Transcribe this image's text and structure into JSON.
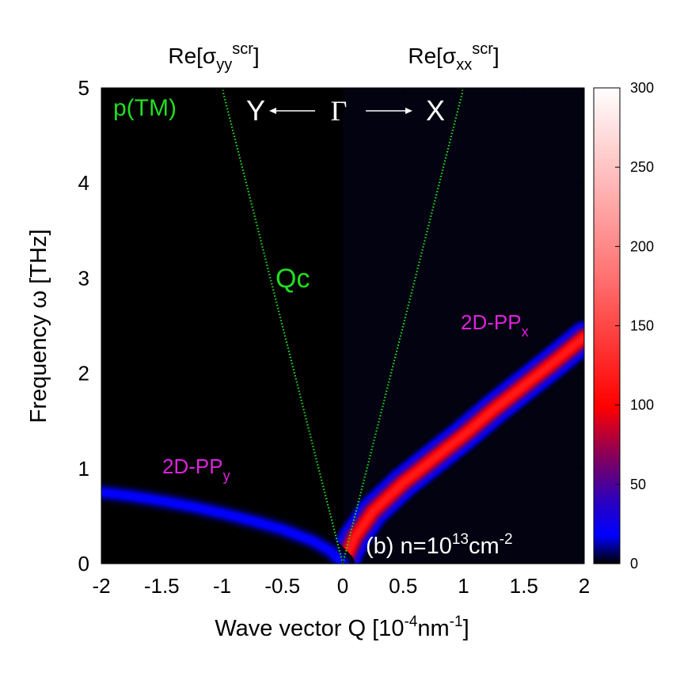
{
  "chart_data": {
    "type": "heatmap",
    "xlabel": "Wave vector Q [10",
    "xlabel_exp": "-4",
    "xlabel_unit": "nm",
    "xlabel_unit_exp": "-1",
    "xlabel_close": "]",
    "ylabel": "Frequency ω [THz]",
    "xlim": [
      -2,
      2
    ],
    "ylim": [
      0,
      5
    ],
    "xticks": [
      "-2",
      "-1.5",
      "-1",
      "-0.5",
      "0",
      "0.5",
      "1",
      "1.5",
      "2"
    ],
    "xtick_values": [
      -2,
      -1.5,
      -1,
      -0.5,
      0,
      0.5,
      1,
      1.5,
      2
    ],
    "yticks": [
      "0",
      "1",
      "2",
      "3",
      "4",
      "5"
    ],
    "ytick_values": [
      0,
      1,
      2,
      3,
      4,
      5
    ],
    "colorbar": {
      "range": [
        0,
        300
      ],
      "ticks": [
        "0",
        "50",
        "100",
        "150",
        "200",
        "250",
        "300"
      ],
      "tick_values": [
        0,
        50,
        100,
        150,
        200,
        250,
        300
      ],
      "colors": [
        "#000000",
        "#0000ff",
        "#ff0000",
        "#ffffff"
      ]
    },
    "top_labels": {
      "left": {
        "base": "Re[σ",
        "sub": "yy",
        "sup": "scr",
        "close": "]"
      },
      "right": {
        "base": "Re[σ",
        "sub": "xx",
        "sup": "scr",
        "close": "]"
      }
    },
    "annotations": {
      "polarization": "p(TM)",
      "y_dir": "Y",
      "gamma": "Γ",
      "x_dir": "X",
      "light_line": "Qc",
      "mode_x": {
        "base": "2D-PP",
        "sub": "x"
      },
      "mode_y": {
        "base": "2D-PP",
        "sub": "y"
      },
      "panel": {
        "base": "(b) n=10",
        "sup1": "13",
        "mid": "cm",
        "sup2": "-2"
      }
    },
    "light_line": {
      "slope_thz_per_unit": 5,
      "color": "#22dd22"
    },
    "series": [
      {
        "name": "2D-PP_x",
        "x": [
          0,
          0.1,
          0.25,
          0.5,
          0.75,
          1.0,
          1.25,
          1.5,
          1.75,
          2.0
        ],
        "y": [
          0,
          0.28,
          0.55,
          0.85,
          1.1,
          1.35,
          1.62,
          1.87,
          2.12,
          2.38
        ],
        "peak": 120,
        "width": 0.14
      },
      {
        "name": "2D-PP_y",
        "x": [
          0,
          -0.1,
          -0.25,
          -0.5,
          -0.75,
          -1.0,
          -1.25,
          -1.5,
          -1.75,
          -2.0
        ],
        "y": [
          0,
          0.13,
          0.24,
          0.36,
          0.45,
          0.53,
          0.6,
          0.66,
          0.71,
          0.75
        ],
        "peak": 20,
        "width": 0.09
      }
    ]
  }
}
